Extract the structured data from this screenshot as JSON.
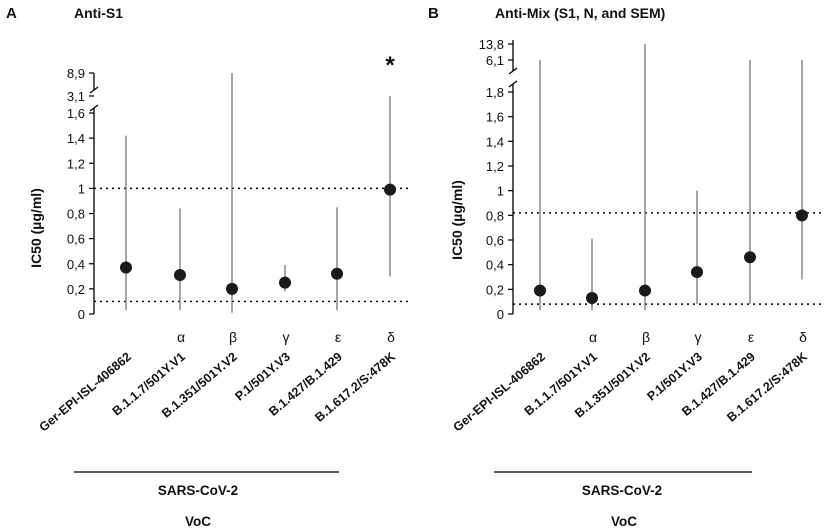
{
  "figure": {
    "group_label": "SARS-CoV-2",
    "voc_label": "VoC"
  },
  "chart_data": [
    {
      "type": "scatter",
      "panel": "A",
      "title": "Anti-S1",
      "ylabel": "IC50 (µg/ml)",
      "xlabel": "VoC",
      "group_label": "SARS-CoV-2",
      "ylim": [
        0,
        1.6
      ],
      "yticks": [
        "0",
        "0,2",
        "0,4",
        "0,6",
        "0,8",
        "1",
        "1,2",
        "1,4",
        "1,6"
      ],
      "broken_axis_ticks": [
        "3,1",
        "8,9"
      ],
      "categories": [
        "Ger-EPI-ISL-406862",
        "B.1.1.7/501Y.V1",
        "B.1.351/501Y.V2",
        "P.1/501Y.V3",
        "B.1.427/B.1.429",
        "B.1.617.2/S:478K"
      ],
      "greek": [
        "",
        "α",
        "β",
        "γ",
        "ε",
        "δ"
      ],
      "means": [
        0.37,
        0.31,
        0.2,
        0.25,
        0.32,
        0.99
      ],
      "error_low": [
        0.03,
        0.03,
        0.01,
        0.18,
        0.03,
        0.3
      ],
      "error_high": [
        1.42,
        0.84,
        8.9,
        0.39,
        0.85,
        3.1
      ],
      "reference_lines": [
        1.0,
        0.1
      ],
      "significance": [
        "",
        "",
        "",
        "",
        "",
        "*"
      ]
    },
    {
      "type": "scatter",
      "panel": "B",
      "title": "Anti-Mix (S1, N, and SEM)",
      "ylabel": "IC50 (µg/ml)",
      "xlabel": "VoC",
      "group_label": "SARS-CoV-2",
      "ylim": [
        0,
        1.8
      ],
      "yticks": [
        "0",
        "0,2",
        "0,4",
        "0,6",
        "0,8",
        "1",
        "1,2",
        "1,4",
        "1,6",
        "1,8"
      ],
      "broken_axis_ticks": [
        "6,1",
        "13,8"
      ],
      "categories": [
        "Ger-EPI-ISL-406862",
        "B.1.1.7/501Y.V1",
        "B.1.351/501Y.V2",
        "P.1/501Y.V3",
        "B.1.427/B.1.429",
        "B.1.617.2/S:478K"
      ],
      "greek": [
        "",
        "α",
        "β",
        "γ",
        "ε",
        "δ"
      ],
      "means": [
        0.19,
        0.13,
        0.19,
        0.34,
        0.46,
        0.8
      ],
      "error_low": [
        0.03,
        0.03,
        0.03,
        0.08,
        0.08,
        0.28
      ],
      "error_high": [
        6.1,
        0.61,
        13.8,
        1.0,
        6.1,
        6.1
      ],
      "reference_lines": [
        0.82,
        0.08
      ],
      "significance": [
        "",
        "",
        "",
        "",
        "",
        ""
      ]
    }
  ]
}
